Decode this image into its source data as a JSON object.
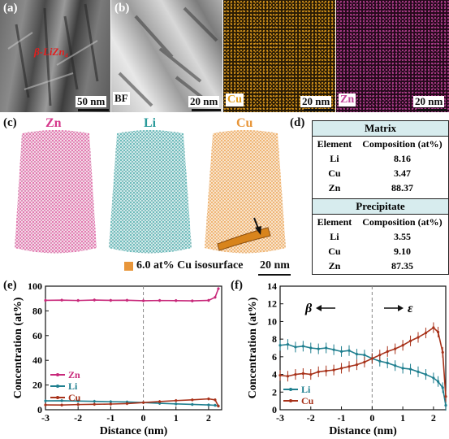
{
  "panel_a": {
    "label": "(a)",
    "phase_label": "β-LiZn₄",
    "scale": "50 nm"
  },
  "panel_b": {
    "label": "(b)",
    "bf_label": "BF",
    "scale": "20 nm"
  },
  "panel_cu_map": {
    "element": "Cu",
    "scale": "20 nm",
    "color": "#e3a020"
  },
  "panel_zn_map": {
    "element": "Zn",
    "scale": "20 nm",
    "color": "#c2459b"
  },
  "panel_c": {
    "label": "(c)",
    "elements": [
      {
        "name": "Zn",
        "color": "#d6398c"
      },
      {
        "name": "Li",
        "color": "#2a9a9a"
      },
      {
        "name": "Cu",
        "color": "#e8963a"
      }
    ],
    "isosurface_label": "6.0 at% Cu isosurface",
    "scale": "20 nm"
  },
  "panel_d": {
    "label": "(d)",
    "matrix": {
      "title": "Matrix",
      "headers": [
        "Element",
        "Composition (at%)"
      ],
      "rows": [
        [
          "Li",
          "8.16"
        ],
        [
          "Cu",
          "3.47"
        ],
        [
          "Zn",
          "88.37"
        ]
      ]
    },
    "precipitate": {
      "title": "Precipitate",
      "headers": [
        "Element",
        "Composition (at%)"
      ],
      "rows": [
        [
          "Li",
          "3.55"
        ],
        [
          "Cu",
          "9.10"
        ],
        [
          "Zn",
          "87.35"
        ]
      ]
    }
  },
  "chart_data": [
    {
      "panel": "(e)",
      "type": "line",
      "xlabel": "Distance (nm)",
      "ylabel": "Concentration (at%)",
      "xlim": [
        -3,
        2.4
      ],
      "ylim": [
        0,
        100
      ],
      "xticks": [
        "-3",
        "-2",
        "-1",
        "0",
        "1",
        "2"
      ],
      "yticks": [
        "0",
        "20",
        "40",
        "60",
        "80",
        "100"
      ],
      "legend": "lower-left",
      "series": [
        {
          "name": "Zn",
          "color": "#c8287a",
          "x": [
            -3,
            -2.5,
            -2,
            -1.5,
            -1,
            -0.5,
            0,
            0.5,
            1,
            1.5,
            2,
            2.2,
            2.3
          ],
          "y": [
            88.5,
            88.7,
            88.4,
            88.8,
            88.5,
            88.6,
            88.2,
            88.4,
            88.3,
            88.1,
            88.5,
            91,
            98
          ]
        },
        {
          "name": "Li",
          "color": "#1f7f8f",
          "x": [
            -3,
            -2.5,
            -2,
            -1.5,
            -1,
            -0.5,
            0,
            0.5,
            1,
            1.5,
            2,
            2.2,
            2.3
          ],
          "y": [
            7.2,
            7.3,
            7.0,
            6.8,
            6.5,
            6.3,
            5.8,
            5.2,
            4.7,
            4.3,
            3.9,
            3.6,
            3.0
          ]
        },
        {
          "name": "Cu",
          "color": "#a8321a",
          "x": [
            -3,
            -2.5,
            -2,
            -1.5,
            -1,
            -0.5,
            0,
            0.5,
            1,
            1.5,
            2,
            2.2,
            2.3
          ],
          "y": [
            3.9,
            3.8,
            4.2,
            4.4,
            4.6,
            5.0,
            5.8,
            6.6,
            7.4,
            8.0,
            8.8,
            8.0,
            3.0
          ]
        }
      ]
    },
    {
      "panel": "(f)",
      "type": "line",
      "xlabel": "Distance (nm)",
      "ylabel": "Concentration (at%)",
      "xlim": [
        -3,
        2.4
      ],
      "ylim": [
        0,
        14
      ],
      "xticks": [
        "-3",
        "-2",
        "-1",
        "0",
        "1",
        "2"
      ],
      "yticks": [
        "0",
        "2",
        "4",
        "6",
        "8",
        "10",
        "12",
        "14"
      ],
      "annotations": [
        "β",
        "ε"
      ],
      "legend": "lower-left",
      "series": [
        {
          "name": "Li",
          "color": "#1f7f8f",
          "x": [
            -3,
            -2.75,
            -2.5,
            -2.25,
            -2,
            -1.75,
            -1.5,
            -1.25,
            -1,
            -0.75,
            -0.5,
            -0.25,
            0,
            0.25,
            0.5,
            0.75,
            1,
            1.25,
            1.5,
            1.75,
            2,
            2.15,
            2.3,
            2.4
          ],
          "y": [
            7.3,
            7.4,
            7.1,
            7.2,
            7.0,
            6.9,
            7.0,
            6.8,
            6.6,
            6.7,
            6.3,
            6.2,
            5.8,
            5.5,
            5.3,
            5.0,
            4.7,
            4.6,
            4.3,
            4.0,
            3.6,
            3.2,
            2.5,
            0.5
          ]
        },
        {
          "name": "Cu",
          "color": "#a8321a",
          "x": [
            -3,
            -2.75,
            -2.5,
            -2.25,
            -2,
            -1.75,
            -1.5,
            -1.25,
            -1,
            -0.75,
            -0.5,
            -0.25,
            0,
            0.25,
            0.5,
            0.75,
            1,
            1.25,
            1.5,
            1.75,
            2,
            2.15,
            2.3,
            2.4
          ],
          "y": [
            3.9,
            3.8,
            4.0,
            4.1,
            4.0,
            4.3,
            4.4,
            4.5,
            4.7,
            4.9,
            5.1,
            5.4,
            5.8,
            6.2,
            6.6,
            6.9,
            7.3,
            7.8,
            8.2,
            8.7,
            9.3,
            8.8,
            6.5,
            1.5
          ]
        }
      ]
    }
  ]
}
